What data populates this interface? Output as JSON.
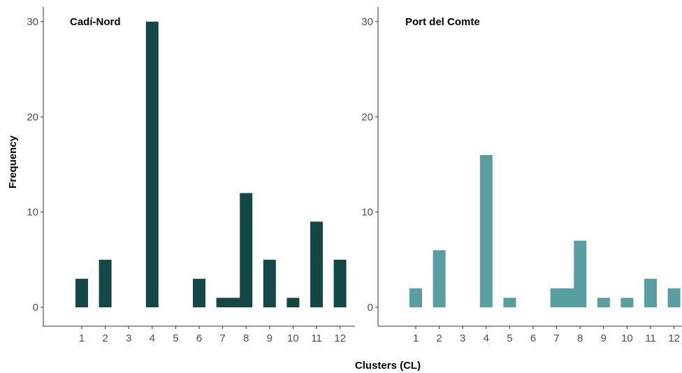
{
  "chart_data": {
    "type": "bar",
    "ylabel": "Frequency",
    "xlabel": "Clusters (CL)",
    "ylim": [
      0,
      31
    ],
    "yticks": [
      0,
      10,
      20,
      30
    ],
    "xticks": [
      "1",
      "2",
      "3",
      "4",
      "5",
      "6",
      "7",
      "8",
      "9",
      "10",
      "11",
      "12"
    ],
    "panels": [
      {
        "title": "Cadí-Nord",
        "color": "#134847",
        "values": [
          3,
          5,
          0,
          30,
          0,
          3,
          1,
          12,
          5,
          1,
          9,
          5
        ],
        "secondary_bar": {
          "cluster": 7.5,
          "value": 1
        }
      },
      {
        "title": "Port del Comte",
        "color": "#579fa1",
        "values": [
          2,
          6,
          0,
          16,
          1,
          0,
          2,
          7,
          1,
          1,
          3,
          2
        ],
        "secondary_bar": {
          "cluster": 7.5,
          "value": 2
        }
      }
    ]
  }
}
